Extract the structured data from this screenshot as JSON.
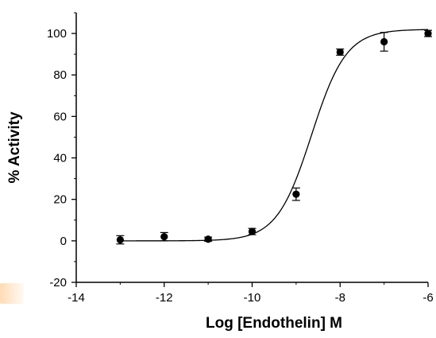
{
  "chart_data": {
    "type": "scatter",
    "title": "",
    "xlabel": "Log [Endothelin] M",
    "ylabel": "% Activity",
    "xlim": [
      -14,
      -6
    ],
    "ylim": [
      -20,
      110
    ],
    "xticks": [
      -14,
      -12,
      -10,
      -8,
      -6
    ],
    "xtick_labels": [
      "-14",
      "-12",
      "-10",
      "-8",
      "-6"
    ],
    "yticks": [
      -20,
      0,
      20,
      40,
      60,
      80,
      100
    ],
    "ytick_labels": [
      "-20",
      "0",
      "20",
      "40",
      "60",
      "80",
      "100"
    ],
    "grid": false,
    "legend": "none",
    "marker_color": "#000000",
    "points": [
      {
        "x": -13,
        "y": 0.5,
        "err": 2
      },
      {
        "x": -12,
        "y": 2,
        "err": 2
      },
      {
        "x": -11,
        "y": 0.8,
        "err": 1
      },
      {
        "x": -10,
        "y": 4.5,
        "err": 1.5
      },
      {
        "x": -9,
        "y": 22.5,
        "err": 3
      },
      {
        "x": -8,
        "y": 91,
        "err": 1.5
      },
      {
        "x": -7,
        "y": 96,
        "err": 4.5
      },
      {
        "x": -6,
        "y": 100,
        "err": 1.5
      }
    ],
    "fit_curve": {
      "model": "four-parameter logistic",
      "bottom": 0,
      "top": 102,
      "logEC50": -8.65,
      "hill_slope": 1.1
    }
  }
}
